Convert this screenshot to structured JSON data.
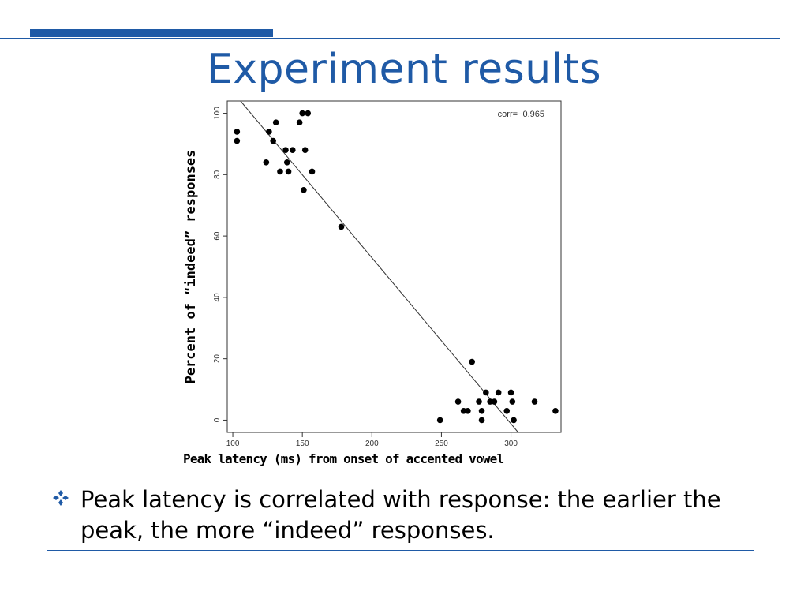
{
  "slide": {
    "title": "Experiment results",
    "bullet": "Peak latency is correlated with response: the earlier the peak, the more “indeed” responses.",
    "bullet_icon": "diamond-bullet-icon"
  },
  "colors": {
    "accent": "#1f5aa6",
    "bullet": "#1f5aa6"
  },
  "chart_data": {
    "type": "scatter",
    "ylabel": "Percent of “indeed” responses",
    "xlabel": "Peak latency (ms) from onset of accented vowel",
    "annotation": "corr=−0.965",
    "xlim": [
      96,
      336
    ],
    "ylim": [
      -4,
      104
    ],
    "xticks": [
      100,
      150,
      200,
      250,
      300
    ],
    "yticks": [
      0,
      20,
      40,
      60,
      80,
      100
    ],
    "grid": false,
    "trendline": {
      "x": [
        100,
        320
      ],
      "y": [
        107,
        -12
      ]
    },
    "points": [
      {
        "x": 103,
        "y": 94
      },
      {
        "x": 103,
        "y": 91
      },
      {
        "x": 124,
        "y": 84
      },
      {
        "x": 126,
        "y": 94
      },
      {
        "x": 129,
        "y": 91
      },
      {
        "x": 131,
        "y": 97
      },
      {
        "x": 134,
        "y": 81
      },
      {
        "x": 138,
        "y": 88
      },
      {
        "x": 139,
        "y": 84
      },
      {
        "x": 140,
        "y": 81
      },
      {
        "x": 143,
        "y": 88
      },
      {
        "x": 148,
        "y": 97
      },
      {
        "x": 150,
        "y": 100
      },
      {
        "x": 151,
        "y": 75
      },
      {
        "x": 152,
        "y": 88
      },
      {
        "x": 154,
        "y": 100
      },
      {
        "x": 157,
        "y": 81
      },
      {
        "x": 178,
        "y": 63
      },
      {
        "x": 249,
        "y": 0
      },
      {
        "x": 262,
        "y": 6
      },
      {
        "x": 266,
        "y": 3
      },
      {
        "x": 269,
        "y": 3
      },
      {
        "x": 272,
        "y": 19
      },
      {
        "x": 277,
        "y": 6
      },
      {
        "x": 279,
        "y": 3
      },
      {
        "x": 279,
        "y": 0
      },
      {
        "x": 282,
        "y": 9
      },
      {
        "x": 285,
        "y": 6
      },
      {
        "x": 288,
        "y": 6
      },
      {
        "x": 291,
        "y": 9
      },
      {
        "x": 297,
        "y": 3
      },
      {
        "x": 300,
        "y": 9
      },
      {
        "x": 301,
        "y": 6
      },
      {
        "x": 302,
        "y": 0
      },
      {
        "x": 317,
        "y": 6
      },
      {
        "x": 332,
        "y": 3
      }
    ]
  }
}
